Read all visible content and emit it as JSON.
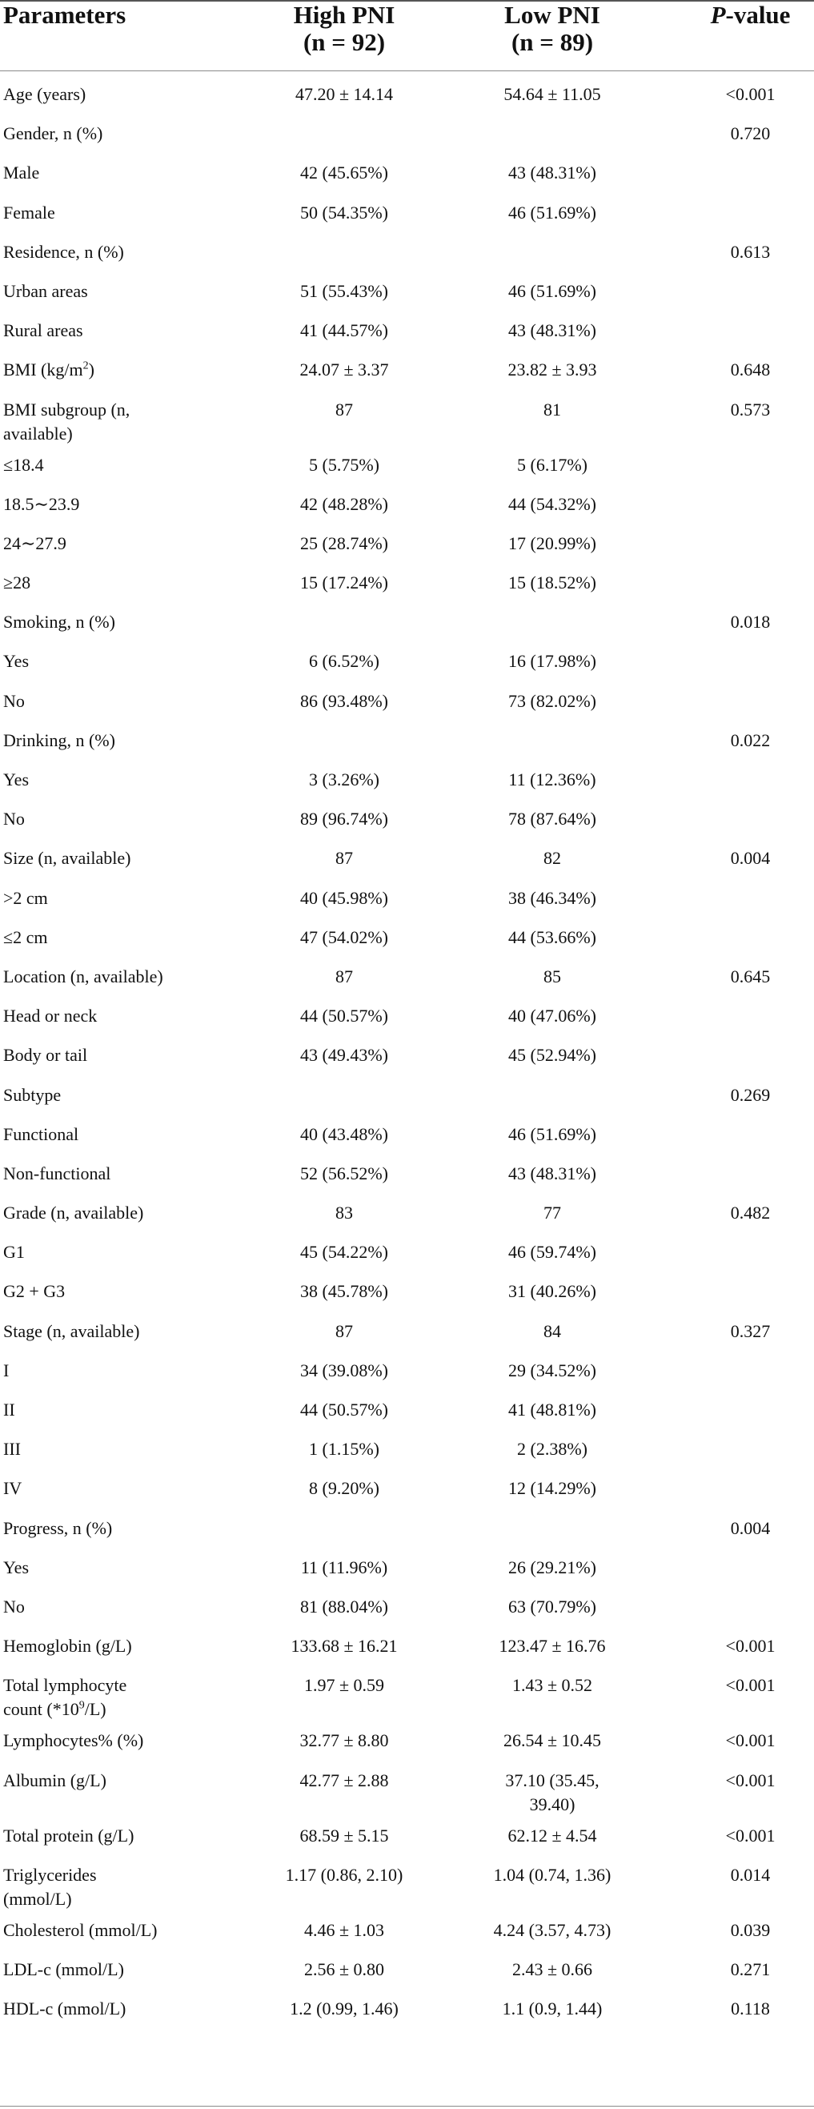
{
  "header": {
    "parameters": "Parameters",
    "high_title": "High PNI",
    "high_n": "(n = 92)",
    "low_title": "Low PNI",
    "low_n": "(n = 89)",
    "p_label_italic": "P",
    "p_label_rest": "-value"
  },
  "rows": [
    {
      "param": "Age (years)",
      "high": "47.20 ± 14.14",
      "low": "54.64 ± 11.05",
      "p": "<0.001"
    },
    {
      "param": "Gender, n (%)",
      "high": "",
      "low": "",
      "p": "0.720"
    },
    {
      "param": "Male",
      "high": "42 (45.65%)",
      "low": "43 (48.31%)",
      "p": ""
    },
    {
      "param": "Female",
      "high": "50 (54.35%)",
      "low": "46 (51.69%)",
      "p": ""
    },
    {
      "param": "Residence, n (%)",
      "high": "",
      "low": "",
      "p": "0.613"
    },
    {
      "param": "Urban areas",
      "high": "51 (55.43%)",
      "low": "46 (51.69%)",
      "p": ""
    },
    {
      "param": "Rural areas",
      "high": "41 (44.57%)",
      "low": "43 (48.31%)",
      "p": ""
    },
    {
      "param": "BMI (kg/m",
      "param_sup": "2",
      "param_after": ")",
      "high": "24.07 ± 3.37",
      "low": "23.82 ± 3.93",
      "p": "0.648"
    },
    {
      "param": "BMI subgroup (n,",
      "param_line2": "available)",
      "high": "87",
      "low": "81",
      "p": "0.573"
    },
    {
      "param": "≤18.4",
      "high": "5 (5.75%)",
      "low": "5 (6.17%)",
      "p": ""
    },
    {
      "param": "18.5∼23.9",
      "high": "42 (48.28%)",
      "low": "44 (54.32%)",
      "p": ""
    },
    {
      "param": "24∼27.9",
      "high": "25 (28.74%)",
      "low": "17 (20.99%)",
      "p": ""
    },
    {
      "param": "≥28",
      "high": "15 (17.24%)",
      "low": "15 (18.52%)",
      "p": ""
    },
    {
      "param": "Smoking, n (%)",
      "high": "",
      "low": "",
      "p": "0.018"
    },
    {
      "param": "Yes",
      "high": "6 (6.52%)",
      "low": "16 (17.98%)",
      "p": ""
    },
    {
      "param": "No",
      "high": "86 (93.48%)",
      "low": "73 (82.02%)",
      "p": ""
    },
    {
      "param": "Drinking, n (%)",
      "high": "",
      "low": "",
      "p": "0.022"
    },
    {
      "param": "Yes",
      "high": "3 (3.26%)",
      "low": "11 (12.36%)",
      "p": ""
    },
    {
      "param": "No",
      "high": "89 (96.74%)",
      "low": "78 (87.64%)",
      "p": ""
    },
    {
      "param": "Size (n, available)",
      "high": "87",
      "low": "82",
      "p": "0.004"
    },
    {
      "param": ">2 cm",
      "high": "40 (45.98%)",
      "low": "38 (46.34%)",
      "p": ""
    },
    {
      "param": "≤2 cm",
      "high": "47 (54.02%)",
      "low": "44 (53.66%)",
      "p": ""
    },
    {
      "param": "Location (n, available)",
      "high": "87",
      "low": "85",
      "p": "0.645"
    },
    {
      "param": "Head or neck",
      "high": "44 (50.57%)",
      "low": "40 (47.06%)",
      "p": ""
    },
    {
      "param": "Body or tail",
      "high": "43 (49.43%)",
      "low": "45 (52.94%)",
      "p": ""
    },
    {
      "param": "Subtype",
      "high": "",
      "low": "",
      "p": "0.269"
    },
    {
      "param": "Functional",
      "high": "40 (43.48%)",
      "low": "46 (51.69%)",
      "p": ""
    },
    {
      "param": "Non-functional",
      "high": "52 (56.52%)",
      "low": "43 (48.31%)",
      "p": ""
    },
    {
      "param": "Grade (n, available)",
      "high": "83",
      "low": "77",
      "p": "0.482"
    },
    {
      "param": "G1",
      "high": "45 (54.22%)",
      "low": "46 (59.74%)",
      "p": ""
    },
    {
      "param": "G2 + G3",
      "high": "38 (45.78%)",
      "low": "31 (40.26%)",
      "p": ""
    },
    {
      "param": "Stage (n, available)",
      "high": "87",
      "low": "84",
      "p": "0.327"
    },
    {
      "param": "I",
      "high": "34 (39.08%)",
      "low": "29 (34.52%)",
      "p": ""
    },
    {
      "param": "II",
      "high": "44 (50.57%)",
      "low": "41 (48.81%)",
      "p": ""
    },
    {
      "param": "III",
      "high": "1 (1.15%)",
      "low": "2 (2.38%)",
      "p": ""
    },
    {
      "param": "IV",
      "high": "8 (9.20%)",
      "low": "12 (14.29%)",
      "p": ""
    },
    {
      "param": "Progress, n (%)",
      "high": "",
      "low": "",
      "p": "0.004"
    },
    {
      "param": "Yes",
      "high": "11 (11.96%)",
      "low": "26 (29.21%)",
      "p": ""
    },
    {
      "param": "No",
      "high": "81 (88.04%)",
      "low": "63 (70.79%)",
      "p": ""
    },
    {
      "param": "Hemoglobin (g/L)",
      "high": "133.68 ± 16.21",
      "low": "123.47 ± 16.76",
      "p": "<0.001"
    },
    {
      "param": "Total lymphocyte",
      "param_line2": "count (*10",
      "param_line2_sup": "9",
      "param_line2_after": "/L)",
      "high": "1.97 ± 0.59",
      "low": "1.43 ± 0.52",
      "p": "<0.001"
    },
    {
      "param": "Lymphocytes% (%)",
      "high": "32.77 ± 8.80",
      "low": "26.54 ± 10.45",
      "p": "<0.001"
    },
    {
      "param": "Albumin (g/L)",
      "high": "42.77 ± 2.88",
      "low": "37.10 (35.45,",
      "low_line2": "39.40)",
      "p": "<0.001"
    },
    {
      "param": "Total protein (g/L)",
      "high": "68.59 ± 5.15",
      "low": "62.12 ± 4.54",
      "p": "<0.001"
    },
    {
      "param": "Triglycerides",
      "param_line2": "(mmol/L)",
      "high": "1.17 (0.86, 2.10)",
      "low": "1.04 (0.74, 1.36)",
      "p": "0.014"
    },
    {
      "param": "Cholesterol (mmol/L)",
      "high": "4.46 ± 1.03",
      "low": "4.24 (3.57, 4.73)",
      "p": "0.039"
    },
    {
      "param": "LDL-c (mmol/L)",
      "high": "2.56 ± 0.80",
      "low": "2.43 ± 0.66",
      "p": "0.271"
    },
    {
      "param": "HDL-c (mmol/L)",
      "high": "1.2 (0.99, 1.46)",
      "low": "1.1 (0.9, 1.44)",
      "p": "0.118"
    }
  ]
}
